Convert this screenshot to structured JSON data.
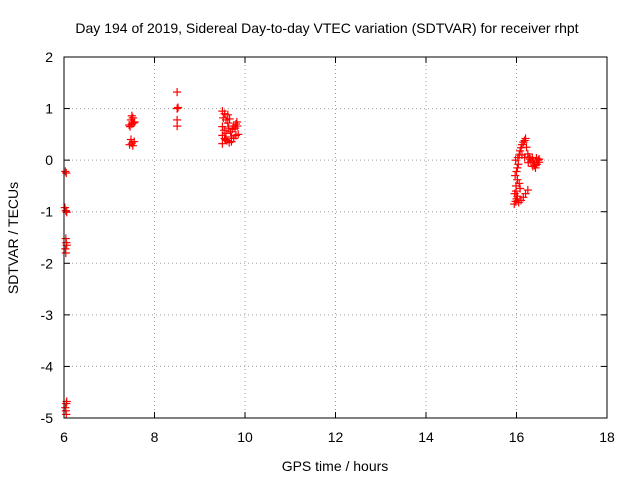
{
  "chart_data": {
    "type": "scatter",
    "title": "Day 194 of 2019, Sidereal Day-to-day VTEC variation (SDTVAR) for receiver rhpt",
    "xlabel": "GPS time / hours",
    "ylabel": "SDTVAR / TECUs",
    "xlim": [
      6,
      18
    ],
    "ylim": [
      -5,
      2
    ],
    "xticks": [
      6,
      8,
      10,
      12,
      14,
      16,
      18
    ],
    "yticks": [
      -5,
      -4,
      -3,
      -2,
      -1,
      0,
      1,
      2
    ],
    "grid": true,
    "marker": "plus",
    "colors": {
      "series": "#ff0000",
      "axis": "#000000",
      "grid": "#a0a0a0",
      "background": "#ffffff"
    },
    "series": [
      {
        "name": "SDTVAR",
        "points": [
          [
            6.03,
            -0.22
          ],
          [
            6.05,
            -0.25
          ],
          [
            6.02,
            -0.92
          ],
          [
            6.04,
            -0.98
          ],
          [
            6.06,
            -1.01
          ],
          [
            6.04,
            -1.52
          ],
          [
            6.05,
            -1.6
          ],
          [
            6.06,
            -1.65
          ],
          [
            6.03,
            -1.72
          ],
          [
            6.04,
            -1.8
          ],
          [
            6.06,
            -4.68
          ],
          [
            6.05,
            -4.72
          ],
          [
            6.03,
            -4.8
          ],
          [
            6.04,
            -4.86
          ],
          [
            6.05,
            -4.93
          ],
          [
            7.45,
            0.3
          ],
          [
            7.5,
            0.33
          ],
          [
            7.55,
            0.36
          ],
          [
            7.48,
            0.4
          ],
          [
            7.52,
            0.28
          ],
          [
            7.46,
            0.65
          ],
          [
            7.5,
            0.7
          ],
          [
            7.54,
            0.72
          ],
          [
            7.48,
            0.78
          ],
          [
            7.52,
            0.82
          ],
          [
            7.5,
            0.86
          ],
          [
            7.56,
            0.74
          ],
          [
            7.44,
            0.68
          ],
          [
            8.5,
            1.32
          ],
          [
            8.5,
            1.0
          ],
          [
            8.52,
            1.02
          ],
          [
            8.5,
            0.78
          ],
          [
            8.5,
            0.66
          ],
          [
            9.5,
            0.95
          ],
          [
            9.55,
            0.9
          ],
          [
            9.52,
            0.82
          ],
          [
            9.58,
            0.78
          ],
          [
            9.62,
            0.72
          ],
          [
            9.5,
            0.65
          ],
          [
            9.54,
            0.58
          ],
          [
            9.5,
            0.48
          ],
          [
            9.55,
            0.42
          ],
          [
            9.6,
            0.38
          ],
          [
            9.5,
            0.32
          ],
          [
            9.65,
            0.34
          ],
          [
            9.7,
            0.36
          ],
          [
            9.68,
            0.55
          ],
          [
            9.72,
            0.6
          ],
          [
            9.75,
            0.66
          ],
          [
            9.8,
            0.7
          ],
          [
            9.82,
            0.74
          ],
          [
            9.78,
            0.62
          ],
          [
            9.66,
            0.8
          ],
          [
            9.62,
            0.88
          ],
          [
            9.7,
            0.45
          ],
          [
            9.75,
            0.42
          ],
          [
            9.8,
            0.48
          ],
          [
            9.85,
            0.5
          ],
          [
            9.58,
            0.52
          ],
          [
            9.64,
            0.62
          ],
          [
            9.57,
            0.4
          ],
          [
            9.83,
            0.66
          ],
          [
            15.95,
            -0.85
          ],
          [
            15.98,
            -0.8
          ],
          [
            16.0,
            -0.75
          ],
          [
            16.02,
            -0.7
          ],
          [
            15.96,
            -0.65
          ],
          [
            15.99,
            -0.6
          ],
          [
            16.05,
            -0.82
          ],
          [
            16.1,
            -0.78
          ],
          [
            16.15,
            -0.72
          ],
          [
            16.2,
            -0.65
          ],
          [
            16.25,
            -0.58
          ],
          [
            15.97,
            -0.3
          ],
          [
            16.0,
            -0.22
          ],
          [
            16.02,
            -0.15
          ],
          [
            16.04,
            -0.08
          ],
          [
            15.98,
            0.0
          ],
          [
            16.03,
            0.05
          ],
          [
            16.06,
            0.1
          ],
          [
            16.08,
            0.18
          ],
          [
            16.1,
            0.24
          ],
          [
            16.12,
            0.3
          ],
          [
            16.15,
            0.35
          ],
          [
            16.18,
            0.38
          ],
          [
            16.2,
            0.42
          ],
          [
            16.22,
            0.25
          ],
          [
            16.12,
            0.1
          ],
          [
            16.18,
            0.05
          ],
          [
            16.25,
            0.12
          ],
          [
            16.28,
            0.06
          ],
          [
            16.3,
            0.02
          ],
          [
            16.32,
            -0.02
          ],
          [
            16.35,
            0.05
          ],
          [
            16.38,
            -0.05
          ],
          [
            16.4,
            -0.1
          ],
          [
            16.42,
            -0.15
          ],
          [
            16.45,
            -0.08
          ],
          [
            16.48,
            0.0
          ],
          [
            16.5,
            -0.04
          ],
          [
            16.5,
            0.02
          ],
          [
            16.44,
            0.04
          ],
          [
            16.36,
            -0.12
          ],
          [
            16.26,
            -0.05
          ],
          [
            16.06,
            -0.45
          ],
          [
            16.02,
            -0.38
          ],
          [
            16.08,
            -0.55
          ],
          [
            15.99,
            -0.5
          ]
        ]
      }
    ]
  }
}
